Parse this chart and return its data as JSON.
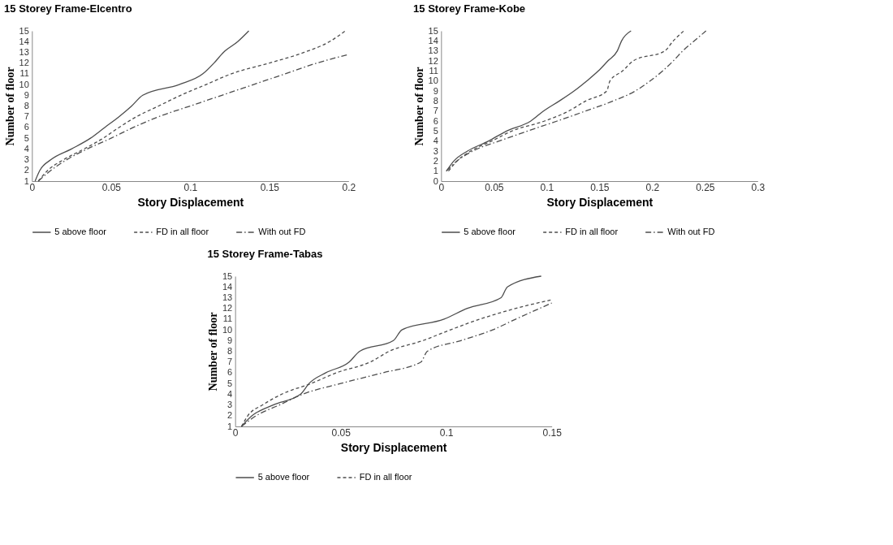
{
  "chart_data": [
    {
      "type": "line",
      "title": "15 Storey Frame-Elcentro",
      "xlabel": "Story Displacement",
      "ylabel": "Number of floor",
      "xlim": [
        0,
        0.2
      ],
      "xticks": [
        0,
        0.05,
        0.1,
        0.15,
        0.2
      ],
      "ylim": [
        1,
        15
      ],
      "yticks": [
        1,
        2,
        3,
        4,
        5,
        6,
        7,
        8,
        9,
        10,
        11,
        12,
        13,
        14,
        15
      ],
      "grid": false,
      "legend": "bottom",
      "series": [
        {
          "name": "5 above floor",
          "color": "#4d4d4d",
          "line_style": "solid",
          "x": [
            0.002,
            0.005,
            0.012,
            0.025,
            0.037,
            0.046,
            0.055,
            0.063,
            0.07,
            0.093,
            0.108,
            0.115,
            0.121,
            0.13,
            0.137
          ],
          "values": [
            1,
            2,
            3,
            4,
            5,
            6,
            7,
            8,
            9,
            10,
            11,
            12,
            13,
            14,
            15
          ]
        },
        {
          "name": "FD in all floor",
          "color": "#4d4d4d",
          "line_style": "dashed",
          "x": [
            0.004,
            0.01,
            0.02,
            0.033,
            0.045,
            0.055,
            0.066,
            0.08,
            0.094,
            0.11,
            0.126,
            0.15,
            0.172,
            0.188,
            0.198
          ],
          "values": [
            1,
            2,
            3,
            4,
            5,
            6,
            7,
            8,
            9,
            10,
            11,
            12,
            13,
            14,
            15
          ]
        },
        {
          "name": "With out FD",
          "color": "#4d4d4d",
          "line_style": "dotted",
          "x": [
            0.004,
            0.012,
            0.022,
            0.035,
            0.05,
            0.064,
            0.08,
            0.1,
            0.12,
            0.14,
            0.16,
            0.18,
            0.2
          ],
          "values": [
            1,
            2,
            3,
            4,
            5,
            6,
            7,
            8,
            9,
            10,
            11,
            12,
            12.8
          ]
        }
      ]
    },
    {
      "type": "line",
      "title": "15 Storey Frame-Kobe",
      "xlabel": "Story  Displacement",
      "ylabel": "Number of floor",
      "xlim": [
        0,
        0.3
      ],
      "xticks": [
        0,
        0.05,
        0.1,
        0.15,
        0.2,
        0.25,
        0.3
      ],
      "ylim": [
        0,
        15
      ],
      "yticks": [
        0,
        1,
        2,
        3,
        4,
        5,
        6,
        7,
        8,
        9,
        10,
        11,
        12,
        13,
        14,
        15
      ],
      "grid": false,
      "legend": "bottom",
      "series": [
        {
          "name": "5 above floor",
          "color": "#4d4d4d",
          "line_style": "solid",
          "x": [
            0.005,
            0.012,
            0.025,
            0.045,
            0.062,
            0.085,
            0.097,
            0.112,
            0.126,
            0.138,
            0.149,
            0.158,
            0.167,
            0.171,
            0.18
          ],
          "values": [
            1,
            2,
            3,
            4,
            5,
            6,
            7,
            8,
            9,
            10,
            11,
            12,
            13,
            14,
            15
          ]
        },
        {
          "name": "FD in all floor",
          "color": "#4d4d4d",
          "line_style": "dashed",
          "x": [
            0.007,
            0.015,
            0.028,
            0.048,
            0.067,
            0.098,
            0.121,
            0.137,
            0.157,
            0.16,
            0.172,
            0.182,
            0.212,
            0.22,
            0.23
          ],
          "values": [
            1,
            2,
            3,
            4,
            5,
            6,
            7,
            8,
            9,
            10,
            11,
            12,
            13,
            14,
            15
          ]
        },
        {
          "name": "With out FD",
          "color": "#4d4d4d",
          "line_style": "dotted",
          "x": [
            0.005,
            0.015,
            0.03,
            0.055,
            0.082,
            0.11,
            0.137,
            0.163,
            0.184,
            0.198,
            0.21,
            0.22,
            0.229,
            0.24,
            0.251
          ],
          "values": [
            1,
            2,
            3,
            4,
            5,
            6,
            7,
            8,
            9,
            10,
            11,
            12,
            13,
            14,
            15
          ]
        }
      ]
    },
    {
      "type": "line",
      "title": "15 Storey Frame-Tabas",
      "xlabel": "Story Displacement",
      "ylabel": "Number of floor",
      "xlim": [
        0,
        0.15
      ],
      "xticks": [
        0,
        0.05,
        0.1,
        0.15
      ],
      "ylim": [
        1,
        15
      ],
      "yticks": [
        1,
        2,
        3,
        4,
        5,
        6,
        7,
        8,
        9,
        10,
        11,
        12,
        13,
        14,
        15
      ],
      "grid": false,
      "legend": "bottom",
      "series": [
        {
          "name": "5 above floor",
          "color": "#4d4d4d",
          "line_style": "solid",
          "x": [
            0.003,
            0.008,
            0.018,
            0.031,
            0.035,
            0.043,
            0.054,
            0.059,
            0.075,
            0.079,
            0.099,
            0.11,
            0.126,
            0.129,
            0.145
          ],
          "values": [
            1,
            2,
            3,
            4,
            5,
            6,
            7,
            8,
            9,
            10,
            11,
            12,
            13,
            14,
            15
          ]
        },
        {
          "name": "FD in all floor",
          "color": "#4d4d4d",
          "line_style": "dashed",
          "x": [
            0.003,
            0.006,
            0.013,
            0.022,
            0.036,
            0.048,
            0.064,
            0.073,
            0.089,
            0.102,
            0.116,
            0.133,
            0.15
          ],
          "values": [
            1,
            2,
            3,
            4,
            5,
            6,
            7,
            8,
            9,
            10,
            11,
            12,
            12.8
          ]
        },
        {
          "color": "#4d4d4d",
          "line_style": "dotted",
          "x": [
            0.003,
            0.01,
            0.021,
            0.032,
            0.05,
            0.07,
            0.088,
            0.091,
            0.107,
            0.122,
            0.133,
            0.15
          ],
          "values": [
            1,
            2,
            3,
            4,
            5,
            6,
            7,
            8,
            9,
            10,
            11,
            12.5
          ]
        }
      ]
    }
  ]
}
